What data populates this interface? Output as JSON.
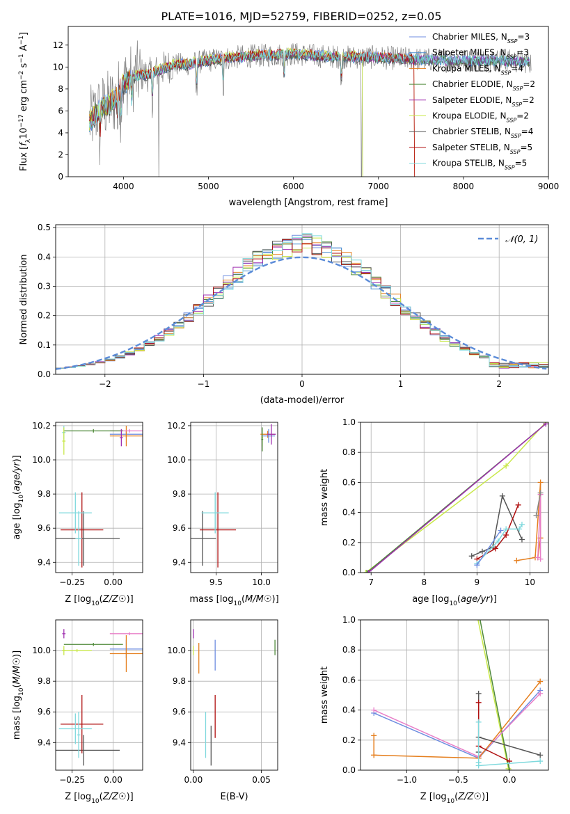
{
  "figure_title": "PLATE=1016, MJD=52759, FIBERID=0252, z=0.05",
  "colors": {
    "Chabrier MILES": "#6f8ee0",
    "Salpeter MILES": "#4a8fd0",
    "Kroupa MILES": "#e57f1e",
    "Chabrier ELODIE": "#4f8a3a",
    "Salpeter ELODIE": "#a030b0",
    "Kroupa ELODIE": "#c9e84a",
    "Chabrier STELIB": "#555555",
    "Salpeter STELIB": "#b01010",
    "Kroupa STELIB": "#7fd9dd",
    "pink": "#e87fc8",
    "normal_curve": "#5b8bd8"
  },
  "chart_data": [
    {
      "id": "spectrum",
      "type": "line",
      "title": "PLATE=1016, MJD=52759, FIBERID=0252, z=0.05",
      "xlabel": "wavelength [Angstrom, rest frame]",
      "ylabel": "Flux [f_λ 10^-17 erg cm^-2 s^-1 A^-1]",
      "xlim": [
        3350,
        9000
      ],
      "ylim": [
        0,
        13.7
      ],
      "xticks": [
        4000,
        5000,
        6000,
        7000,
        8000,
        9000
      ],
      "yticks": [
        0,
        2,
        4,
        6,
        8,
        10,
        12
      ],
      "grid": false,
      "legend_position": "right",
      "legend": [
        {
          "label": "Chabrier MILES, N",
          "sub": "SSP",
          "tail": "=3",
          "color": "#6f8ee0"
        },
        {
          "label": "Salpeter MILES, N",
          "sub": "SSP",
          "tail": "=3",
          "color": "#4a8fd0"
        },
        {
          "label": "Kroupa MILES, N",
          "sub": "SSP",
          "tail": "=4",
          "color": "#e57f1e"
        },
        {
          "label": "Chabrier ELODIE, N",
          "sub": "SSP",
          "tail": "=2",
          "color": "#4f8a3a"
        },
        {
          "label": "Salpeter ELODIE, N",
          "sub": "SSP",
          "tail": "=2",
          "color": "#a030b0"
        },
        {
          "label": "Kroupa ELODIE, N",
          "sub": "SSP",
          "tail": "=2",
          "color": "#c9e84a"
        },
        {
          "label": "Chabrier STELIB, N",
          "sub": "SSP",
          "tail": "=4",
          "color": "#555555"
        },
        {
          "label": "Salpeter STELIB, N",
          "sub": "SSP",
          "tail": "=5",
          "color": "#b01010"
        },
        {
          "label": "Kroupa STELIB, N",
          "sub": "SSP",
          "tail": "=5",
          "color": "#7fd9dd"
        }
      ],
      "data_series": {
        "name": "data",
        "color": "#808080",
        "x_range": [
          3600,
          8800
        ]
      },
      "continuum": {
        "x": [
          3600,
          3700,
          3800,
          3900,
          4000,
          4100,
          4200,
          4300,
          4400,
          4500,
          4600,
          4800,
          5000,
          5200,
          5500,
          5800,
          6000,
          6300,
          6600,
          6900,
          7200,
          7500,
          7800,
          8100,
          8400,
          8700
        ],
        "y": [
          5.0,
          6.0,
          6.5,
          7.0,
          8.5,
          9.0,
          9.3,
          9.3,
          9.6,
          10.0,
          10.2,
          10.3,
          10.6,
          10.8,
          11.0,
          11.1,
          11.2,
          11.0,
          10.9,
          10.9,
          10.8,
          10.7,
          10.6,
          10.6,
          10.6,
          10.5
        ]
      }
    },
    {
      "id": "residuals",
      "type": "line",
      "xlabel": "(data-model)/error",
      "ylabel": "Normed distribution",
      "xlim": [
        -2.5,
        2.5
      ],
      "ylim": [
        0,
        0.51
      ],
      "xticks": [
        -2,
        -1,
        0,
        1,
        2
      ],
      "yticks": [
        0.0,
        0.1,
        0.2,
        0.3,
        0.4,
        0.5
      ],
      "grid": true,
      "legend_position": "top-right",
      "legend": [
        {
          "label": "𝒩(0, 1)",
          "color": "#5b8bd8"
        }
      ],
      "normal_curve": {
        "mean": 0,
        "sigma": 1
      },
      "bins_step": 0.1
    },
    {
      "id": "age_vs_Z",
      "type": "scatter",
      "xlabel": "Z [log10(Z/Z☉)]",
      "ylabel": "age  [log10(age/yr)]",
      "xlim": [
        -0.35,
        0.18
      ],
      "ylim": [
        9.34,
        10.22
      ],
      "xticks": [
        -0.25,
        0.0
      ],
      "yticks": [
        9.4,
        9.6,
        9.8,
        10.0,
        10.2
      ],
      "grid": true,
      "points": [
        {
          "x": -0.18,
          "y": 9.54,
          "ex": 0.22,
          "ey": 0.16,
          "color": "#555555"
        },
        {
          "x": -0.19,
          "y": 9.59,
          "ex": 0.13,
          "ey": 0.22,
          "color": "#b01010"
        },
        {
          "x": -0.23,
          "y": 9.69,
          "ex": 0.1,
          "ey": 0.12,
          "color": "#7fd9dd"
        },
        {
          "x": -0.21,
          "y": 9.54,
          "ex": 0.02,
          "ey": 0.16,
          "color": "#7fd9dd"
        },
        {
          "x": 0.08,
          "y": 10.15,
          "ex": 0.1,
          "ey": 0.02,
          "color": "#6f8ee0"
        },
        {
          "x": 0.08,
          "y": 10.14,
          "ex": 0.1,
          "ey": 0.06,
          "color": "#e57f1e"
        },
        {
          "x": 0.1,
          "y": 10.17,
          "ex": 0.12,
          "ey": 0.01,
          "color": "#e87fc8"
        },
        {
          "x": -0.12,
          "y": 10.17,
          "ex": 0.18,
          "ey": 0.01,
          "color": "#4f8a3a"
        },
        {
          "x": -0.3,
          "y": 10.16,
          "ex": 0.01,
          "ey": 0.04,
          "color": "#7fd9dd"
        },
        {
          "x": -0.3,
          "y": 10.11,
          "ex": 0.01,
          "ey": 0.08,
          "color": "#c9e84a"
        },
        {
          "x": 0.05,
          "y": 10.13,
          "ex": 0.01,
          "ey": 0.05,
          "color": "#a030b0"
        }
      ]
    },
    {
      "id": "age_vs_mass",
      "type": "scatter",
      "xlabel": "mass [log10(M/M☉)]",
      "xlim": [
        9.22,
        10.18
      ],
      "ylim": [
        9.34,
        10.22
      ],
      "xticks": [
        9.5,
        10.0
      ],
      "yticks": [
        9.4,
        9.6,
        9.8,
        10.0,
        10.2
      ],
      "grid": true,
      "points": [
        {
          "x": 9.35,
          "y": 9.54,
          "ex": 0.15,
          "ey": 0.16,
          "color": "#555555"
        },
        {
          "x": 9.52,
          "y": 9.59,
          "ex": 0.2,
          "ey": 0.22,
          "color": "#b01010"
        },
        {
          "x": 9.49,
          "y": 9.69,
          "ex": 0.15,
          "ey": 0.12,
          "color": "#7fd9dd"
        },
        {
          "x": 10.07,
          "y": 10.15,
          "ex": 0.08,
          "ey": 0.02,
          "color": "#e57f1e"
        },
        {
          "x": 10.08,
          "y": 10.14,
          "ex": 0.07,
          "ey": 0.04,
          "color": "#6f8ee0"
        },
        {
          "x": 10.11,
          "y": 10.15,
          "ex": 0.05,
          "ey": 0.06,
          "color": "#a030b0"
        },
        {
          "x": 10.01,
          "y": 10.13,
          "ex": 0.01,
          "ey": 0.05,
          "color": "#c9e84a"
        },
        {
          "x": 10.01,
          "y": 10.12,
          "ex": 0.01,
          "ey": 0.07,
          "color": "#4f8a3a"
        }
      ]
    },
    {
      "id": "weight_vs_age",
      "type": "line",
      "xlabel": "age  [log10(age/yr)]",
      "ylabel": "mass weight",
      "xlim": [
        6.8,
        10.35
      ],
      "ylim": [
        0,
        1.0
      ],
      "xticks": [
        7,
        8,
        9,
        10
      ],
      "yticks": [
        0.0,
        0.2,
        0.4,
        0.6,
        0.8,
        1.0
      ],
      "grid": true,
      "series": [
        {
          "color": "#c9e84a",
          "x": [
            6.9,
            9.55,
            10.3
          ],
          "y": [
            0.0,
            0.71,
            1.0
          ]
        },
        {
          "color": "#4f8a3a",
          "x": [
            6.92,
            10.3
          ],
          "y": [
            0.0,
            0.99
          ]
        },
        {
          "color": "#a030b0",
          "x": [
            6.95,
            10.3
          ],
          "y": [
            0.0,
            0.99
          ]
        },
        {
          "color": "#555555",
          "x": [
            8.9,
            9.1,
            9.3,
            9.48,
            9.85
          ],
          "y": [
            0.11,
            0.14,
            0.17,
            0.51,
            0.22
          ]
        },
        {
          "color": "#b01010",
          "x": [
            9.0,
            9.35,
            9.55,
            9.78
          ],
          "y": [
            0.09,
            0.16,
            0.25,
            0.45
          ]
        },
        {
          "color": "#7fd9dd",
          "x": [
            9.0,
            9.4,
            9.55,
            9.8,
            9.85
          ],
          "y": [
            0.06,
            0.21,
            0.29,
            0.29,
            0.32
          ]
        },
        {
          "color": "#6f8ee0",
          "x": [
            9.0,
            9.45
          ],
          "y": [
            0.05,
            0.28
          ]
        },
        {
          "color": "#e57f1e",
          "x": [
            9.75,
            10.1,
            10.2,
            10.2,
            10.15
          ],
          "y": [
            0.08,
            0.1,
            0.6,
            0.23,
            0.1
          ]
        },
        {
          "color": "#e87fc8",
          "x": [
            10.15,
            10.2,
            10.2
          ],
          "y": [
            0.1,
            0.52,
            0.09
          ]
        },
        {
          "color": "#888888",
          "x": [
            10.12,
            10.2
          ],
          "y": [
            0.38,
            0.53
          ]
        }
      ]
    },
    {
      "id": "mass_vs_Z",
      "type": "scatter",
      "xlabel": "Z [log10(Z/Z☉)]",
      "ylabel": "mass [log10(M/M☉)]",
      "xlim": [
        -0.35,
        0.18
      ],
      "ylim": [
        9.22,
        10.2
      ],
      "xticks": [
        -0.25,
        0.0
      ],
      "yticks": [
        9.4,
        9.6,
        9.8,
        10.0
      ],
      "grid": true,
      "points": [
        {
          "x": -0.18,
          "y": 9.35,
          "ex": 0.22,
          "ey": 0.1,
          "color": "#555555"
        },
        {
          "x": -0.19,
          "y": 9.52,
          "ex": 0.13,
          "ey": 0.19,
          "color": "#b01010"
        },
        {
          "x": -0.23,
          "y": 9.49,
          "ex": 0.1,
          "ey": 0.1,
          "color": "#7fd9dd"
        },
        {
          "x": -0.21,
          "y": 9.45,
          "ex": 0.01,
          "ey": 0.15,
          "color": "#7fd9dd"
        },
        {
          "x": 0.08,
          "y": 10.01,
          "ex": 0.1,
          "ey": 0.06,
          "color": "#6f8ee0"
        },
        {
          "x": 0.08,
          "y": 9.98,
          "ex": 0.1,
          "ey": 0.12,
          "color": "#e57f1e"
        },
        {
          "x": 0.1,
          "y": 10.11,
          "ex": 0.12,
          "ey": 0.01,
          "color": "#e87fc8"
        },
        {
          "x": -0.12,
          "y": 10.04,
          "ex": 0.18,
          "ey": 0.01,
          "color": "#4f8a3a"
        },
        {
          "x": -0.3,
          "y": 10.11,
          "ex": 0.01,
          "ey": 0.03,
          "color": "#a030b0"
        },
        {
          "x": -0.22,
          "y": 10.0,
          "ex": 0.09,
          "ey": 0.01,
          "color": "#c9e84a"
        },
        {
          "x": -0.3,
          "y": 10.0,
          "ex": 0.01,
          "ey": 0.03,
          "color": "#c9e84a"
        }
      ]
    },
    {
      "id": "mass_vs_EBV",
      "type": "scatter",
      "xlabel": "E(B-V)",
      "xlim": [
        -0.002,
        0.062
      ],
      "ylim": [
        9.22,
        10.2
      ],
      "xticks": [
        0.0,
        0.05
      ],
      "yticks": [
        9.4,
        9.6,
        9.8,
        10.0
      ],
      "grid": true,
      "points": [
        {
          "x": 0.0,
          "y": 10.11,
          "ex": 0,
          "ey": 0.03,
          "color": "#a030b0"
        },
        {
          "x": 0.0,
          "y": 10.0,
          "ex": 0,
          "ey": 0.03,
          "color": "#c9e84a"
        },
        {
          "x": 0.004,
          "y": 9.95,
          "ex": 0,
          "ey": 0.1,
          "color": "#e57f1e"
        },
        {
          "x": 0.016,
          "y": 9.97,
          "ex": 0,
          "ey": 0.1,
          "color": "#6f8ee0"
        },
        {
          "x": 0.016,
          "y": 9.57,
          "ex": 0,
          "ey": 0.14,
          "color": "#b01010"
        },
        {
          "x": 0.013,
          "y": 9.38,
          "ex": 0,
          "ey": 0.13,
          "color": "#555555"
        },
        {
          "x": 0.009,
          "y": 9.45,
          "ex": 0,
          "ey": 0.15,
          "color": "#7fd9dd"
        },
        {
          "x": 0.06,
          "y": 10.02,
          "ex": 0,
          "ey": 0.05,
          "color": "#4f8a3a"
        }
      ]
    },
    {
      "id": "weight_vs_Z",
      "type": "line",
      "xlabel": "Z [log10(Z/Z☉)]",
      "ylabel": "mass weight",
      "xlim": [
        -1.45,
        0.38
      ],
      "ylim": [
        0,
        1.0
      ],
      "xticks": [
        -1.0,
        -0.5,
        0.0
      ],
      "yticks": [
        0.0,
        0.2,
        0.4,
        0.6,
        0.8,
        1.0
      ],
      "grid": true,
      "series": [
        {
          "color": "#c9e84a",
          "x": [
            -0.32,
            -0.01
          ],
          "y": [
            1.05,
            0.01
          ]
        },
        {
          "color": "#4f8a3a",
          "x": [
            -0.3,
            0.0
          ],
          "y": [
            1.05,
            0.0
          ]
        },
        {
          "color": "#6f8ee0",
          "x": [
            -1.32,
            -0.3,
            0.3
          ],
          "y": [
            0.38,
            0.08,
            0.53
          ]
        },
        {
          "color": "#e87fc8",
          "x": [
            -1.32,
            -0.3,
            0.3
          ],
          "y": [
            0.4,
            0.09,
            0.51
          ]
        },
        {
          "color": "#e57f1e",
          "x": [
            -1.32,
            -1.32,
            -1.32,
            -0.3,
            0.3
          ],
          "y": [
            0.23,
            0.1,
            0.1,
            0.08,
            0.59
          ]
        },
        {
          "color": "#555555",
          "x": [
            -0.3,
            -0.3,
            -0.3,
            0.3
          ],
          "y": [
            0.51,
            0.12,
            0.22,
            0.1
          ]
        },
        {
          "color": "#b01010",
          "x": [
            -0.3,
            -0.3,
            0.0
          ],
          "y": [
            0.45,
            0.16,
            0.06
          ]
        },
        {
          "color": "#7fd9dd",
          "x": [
            -0.3,
            -0.3,
            -0.3,
            0.3
          ],
          "y": [
            0.32,
            0.05,
            0.03,
            0.06
          ]
        }
      ]
    }
  ]
}
